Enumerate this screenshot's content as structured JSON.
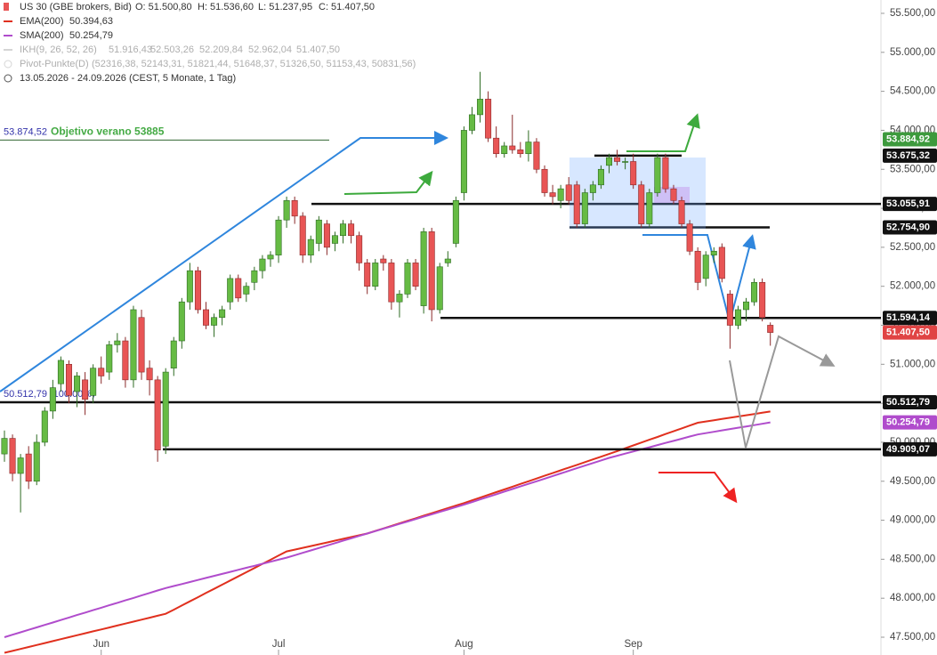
{
  "chart_data": {
    "type": "candlestick",
    "instrument": "US 30 (GBE brokers, Bid)",
    "ohlc_labels": [
      "O: 51.500,80",
      "H: 51.536,60",
      "L: 51.237,95",
      "C: 51.407,50"
    ],
    "ikh": {
      "name": "IKH(9, 26, 52, 26)",
      "labels": [
        "51.916,43",
        "52.503,26",
        "52.209,84",
        "52.962,04",
        "51.407,50"
      ]
    },
    "pivots": {
      "name": "Pivot-Punkte(D)",
      "label": "(52316,38, 52143,31, 51821,44, 51648,37, 51326,50, 51153,43, 50831,56)"
    },
    "range_label": "13.05.2026 - 24.09.2026  (CEST, 5 Monate, 1 Tag)",
    "annotations": [
      {
        "value": 53874.52,
        "label": "53.874,52",
        "text": "Objetivo verano 53885",
        "color": "#3333aa",
        "text_color": "#44aa44"
      },
      {
        "value": 50512.79,
        "label": "50.512,79 (100.00%)",
        "color": "#3333aa"
      }
    ],
    "up_color": "#66bb44",
    "down_color": "#e85555",
    "categories": [
      null,
      null,
      null,
      null,
      null,
      null,
      null,
      null,
      null,
      null,
      null,
      null,
      "Jun",
      null,
      null,
      null,
      null,
      null,
      null,
      null,
      null,
      null,
      null,
      null,
      null,
      null,
      null,
      null,
      null,
      null,
      null,
      null,
      null,
      null,
      "Jul",
      null,
      null,
      null,
      null,
      null,
      null,
      null,
      null,
      null,
      null,
      null,
      null,
      null,
      null,
      null,
      null,
      null,
      null,
      null,
      null,
      null,
      null,
      "Aug",
      null,
      null,
      null,
      null,
      null,
      null,
      null,
      null,
      null,
      null,
      null,
      null,
      null,
      null,
      null,
      null,
      null,
      null,
      null,
      null,
      "Sep",
      null,
      null,
      null,
      null,
      null,
      null,
      null,
      null,
      null,
      null,
      null,
      null,
      null,
      null,
      null,
      null,
      null
    ],
    "candles": [
      [
        49850,
        50150,
        49750,
        50050
      ],
      [
        50050,
        50100,
        49500,
        49600
      ],
      [
        49600,
        49850,
        49100,
        49800
      ],
      [
        49850,
        49950,
        49400,
        49500
      ],
      [
        49500,
        50100,
        49450,
        50000
      ],
      [
        50000,
        50450,
        49950,
        50400
      ],
      [
        50400,
        50800,
        50300,
        50700
      ],
      [
        50750,
        51100,
        50650,
        51050
      ],
      [
        51000,
        51050,
        50500,
        50600
      ],
      [
        50650,
        50900,
        50450,
        50850
      ],
      [
        50800,
        50900,
        50350,
        50550
      ],
      [
        50600,
        51000,
        50500,
        50950
      ],
      [
        50950,
        51100,
        50750,
        50850
      ],
      [
        50900,
        51300,
        50800,
        51250
      ],
      [
        51250,
        51400,
        51150,
        51300
      ],
      [
        51300,
        51350,
        50700,
        50800
      ],
      [
        50800,
        51750,
        50700,
        51700
      ],
      [
        51600,
        51700,
        50800,
        50900
      ],
      [
        50950,
        51050,
        50600,
        50800
      ],
      [
        50800,
        50850,
        49750,
        49900
      ],
      [
        49950,
        50950,
        49850,
        50900
      ],
      [
        50950,
        51350,
        50850,
        51300
      ],
      [
        51300,
        51850,
        51200,
        51800
      ],
      [
        51800,
        52300,
        51700,
        52200
      ],
      [
        52200,
        52250,
        51650,
        51700
      ],
      [
        51700,
        51800,
        51450,
        51500
      ],
      [
        51500,
        51650,
        51350,
        51600
      ],
      [
        51600,
        51750,
        51500,
        51700
      ],
      [
        51800,
        52150,
        51700,
        52100
      ],
      [
        52100,
        52150,
        51800,
        51850
      ],
      [
        51900,
        52050,
        51800,
        52000
      ],
      [
        52050,
        52250,
        51950,
        52200
      ],
      [
        52200,
        52400,
        52100,
        52350
      ],
      [
        52350,
        52450,
        52250,
        52400
      ],
      [
        52400,
        52900,
        52300,
        52850
      ],
      [
        52850,
        53150,
        52750,
        53100
      ],
      [
        53100,
        53150,
        52800,
        52900
      ],
      [
        52900,
        52950,
        52300,
        52400
      ],
      [
        52400,
        52650,
        52300,
        52600
      ],
      [
        52550,
        52900,
        52450,
        52850
      ],
      [
        52800,
        52850,
        52400,
        52500
      ],
      [
        52550,
        52700,
        52450,
        52650
      ],
      [
        52650,
        52850,
        52550,
        52800
      ],
      [
        52800,
        52850,
        52550,
        52650
      ],
      [
        52650,
        52700,
        52200,
        52300
      ],
      [
        52300,
        52350,
        51900,
        52000
      ],
      [
        52000,
        52350,
        51950,
        52300
      ],
      [
        52350,
        52400,
        52200,
        52300
      ],
      [
        52300,
        52350,
        51700,
        51800
      ],
      [
        51800,
        51950,
        51600,
        51900
      ],
      [
        51900,
        52350,
        51850,
        52300
      ],
      [
        52300,
        52350,
        51950,
        52000
      ],
      [
        51750,
        52750,
        51650,
        52700
      ],
      [
        52700,
        52750,
        51550,
        51700
      ],
      [
        51700,
        52300,
        51650,
        52250
      ],
      [
        52300,
        52450,
        52250,
        52350
      ],
      [
        52550,
        53150,
        52500,
        53100
      ],
      [
        53200,
        54050,
        53100,
        54000
      ],
      [
        54000,
        54300,
        53950,
        54200
      ],
      [
        54200,
        54750,
        54100,
        54400
      ],
      [
        54400,
        54500,
        53850,
        53900
      ],
      [
        53900,
        54050,
        53650,
        53700
      ],
      [
        53700,
        53850,
        53650,
        53800
      ],
      [
        53800,
        54200,
        53700,
        53750
      ],
      [
        53750,
        53850,
        53650,
        53700
      ],
      [
        53700,
        54000,
        53600,
        53850
      ],
      [
        53850,
        53900,
        53450,
        53500
      ],
      [
        53500,
        53550,
        53150,
        53200
      ],
      [
        53200,
        53300,
        53050,
        53150
      ],
      [
        53100,
        53300,
        53000,
        53250
      ],
      [
        53300,
        53400,
        53050,
        53100
      ],
      [
        53300,
        53350,
        52750,
        52800
      ],
      [
        52800,
        53250,
        52750,
        53200
      ],
      [
        53200,
        53350,
        53100,
        53300
      ],
      [
        53300,
        53550,
        53250,
        53500
      ],
      [
        53550,
        53700,
        53450,
        53650
      ],
      [
        53650,
        53750,
        53550,
        53600
      ],
      [
        53600,
        53650,
        53500,
        53600
      ],
      [
        53600,
        53700,
        53250,
        53300
      ],
      [
        53300,
        53350,
        52750,
        52800
      ],
      [
        52800,
        53250,
        52750,
        53200
      ],
      [
        53200,
        53700,
        53150,
        53650
      ],
      [
        53650,
        53700,
        53200,
        53250
      ],
      [
        53250,
        53300,
        53050,
        53100
      ],
      [
        53100,
        53150,
        52750,
        52800
      ],
      [
        52800,
        52850,
        52400,
        52450
      ],
      [
        52450,
        52500,
        51950,
        52050
      ],
      [
        52100,
        52450,
        52000,
        52400
      ],
      [
        52400,
        52500,
        52300,
        52450
      ],
      [
        52500,
        52550,
        52050,
        52100
      ],
      [
        51900,
        51950,
        51200,
        51500
      ],
      [
        51500,
        51750,
        51450,
        51700
      ],
      [
        51700,
        51850,
        51550,
        51800
      ],
      [
        51800,
        52100,
        51750,
        52050
      ],
      [
        52050,
        52100,
        51550,
        51600
      ],
      [
        51500.8,
        51536.6,
        51237.95,
        51407.5
      ]
    ],
    "series": [
      {
        "name": "EMA(200)",
        "color": "#e0301e",
        "last_label": "50.394,63",
        "values": [
          47300,
          47325,
          47350,
          47375,
          47400,
          47425,
          47450,
          47475,
          47500,
          47525,
          47550,
          47575,
          47600,
          47625,
          47650,
          47675,
          47700,
          47725,
          47750,
          47775,
          47800,
          47853,
          47907,
          47960,
          48013,
          48067,
          48120,
          48173,
          48227,
          48280,
          48333,
          48387,
          48440,
          48493,
          48547,
          48600,
          48623,
          48646,
          48669,
          48692,
          48715,
          48738,
          48761,
          48784,
          48807,
          48830,
          48863,
          48895,
          48928,
          48960,
          48993,
          49025,
          49058,
          49090,
          49123,
          49155,
          49188,
          49220,
          49255,
          49290,
          49325,
          49360,
          49395,
          49430,
          49465,
          49500,
          49535,
          49570,
          49605,
          49640,
          49675,
          49710,
          49745,
          49780,
          49815,
          49850,
          49886,
          49923,
          49959,
          49996,
          50032,
          50068,
          50105,
          50141,
          50177,
          50214,
          50250,
          50266,
          50282,
          50298,
          50314,
          50330,
          50346,
          50362,
          50378,
          50394.63
        ]
      },
      {
        "name": "SMA(200)",
        "color": "#b04ccc",
        "last_label": "50.254,79",
        "values": [
          47500,
          47532,
          47563,
          47595,
          47626,
          47658,
          47689,
          47721,
          47752,
          47784,
          47815,
          47847,
          47878,
          47910,
          47941,
          47973,
          48004,
          48036,
          48067,
          48099,
          48130,
          48156,
          48182,
          48208,
          48234,
          48260,
          48286,
          48312,
          48338,
          48364,
          48390,
          48416,
          48442,
          48468,
          48494,
          48520,
          48551,
          48582,
          48613,
          48644,
          48675,
          48706,
          48737,
          48768,
          48799,
          48830,
          48861,
          48892,
          48922,
          48953,
          48984,
          49015,
          49046,
          49076,
          49107,
          49138,
          49169,
          49200,
          49233,
          49267,
          49300,
          49333,
          49367,
          49400,
          49433,
          49467,
          49500,
          49533,
          49567,
          49600,
          49633,
          49667,
          49700,
          49733,
          49767,
          49800,
          49827,
          49855,
          49882,
          49909,
          49936,
          49964,
          49991,
          50018,
          50045,
          50073,
          50100,
          50117,
          50134,
          50152,
          50169,
          50186,
          50203,
          50220,
          50237,
          50254.79
        ]
      }
    ],
    "levels": [
      {
        "value": 53675.32,
        "label": "53.675,32"
      },
      {
        "value": 53055.91,
        "label": "53.055,91"
      },
      {
        "value": 52754.9,
        "label": "52.754,90"
      },
      {
        "value": 51594.14,
        "label": "51.594,14"
      },
      {
        "value": 50512.79,
        "label": "50.512,79"
      },
      {
        "value": 49909.07,
        "label": "49.909,07"
      }
    ],
    "price_tags": [
      {
        "value": 53884.92,
        "label": "53.884,92",
        "color": "#3d9a3d"
      },
      {
        "value": 51407.5,
        "label": "51.407,50",
        "color": "#e04444"
      },
      {
        "value": 50254.79,
        "label": "50.254,79",
        "color": "#b04ccc"
      }
    ],
    "ylim": [
      47272,
      55671
    ],
    "yticks": [
      {
        "value": 47500,
        "label": "47.500,00"
      },
      {
        "value": 48000,
        "label": "48.000,00"
      },
      {
        "value": 48500,
        "label": "48.500,00"
      },
      {
        "value": 49000,
        "label": "49.000,00"
      },
      {
        "value": 49500,
        "label": "49.500,00"
      },
      {
        "value": 50000,
        "label": "50.000,00"
      },
      {
        "value": 50500,
        "label": "50.500,00"
      },
      {
        "value": 51000,
        "label": "51.000,00"
      },
      {
        "value": 51500,
        "label": "51.500,00"
      },
      {
        "value": 52000,
        "label": "52.000,00"
      },
      {
        "value": 52500,
        "label": "52.500,00"
      },
      {
        "value": 53000,
        "label": "53.000,00"
      },
      {
        "value": 53500,
        "label": "53.500,00"
      },
      {
        "value": 54000,
        "label": "54.000,00"
      },
      {
        "value": 54500,
        "label": "54.500,00"
      },
      {
        "value": 55000,
        "label": "55.000,00"
      },
      {
        "value": 55500,
        "label": "55.500,00"
      }
    ]
  }
}
